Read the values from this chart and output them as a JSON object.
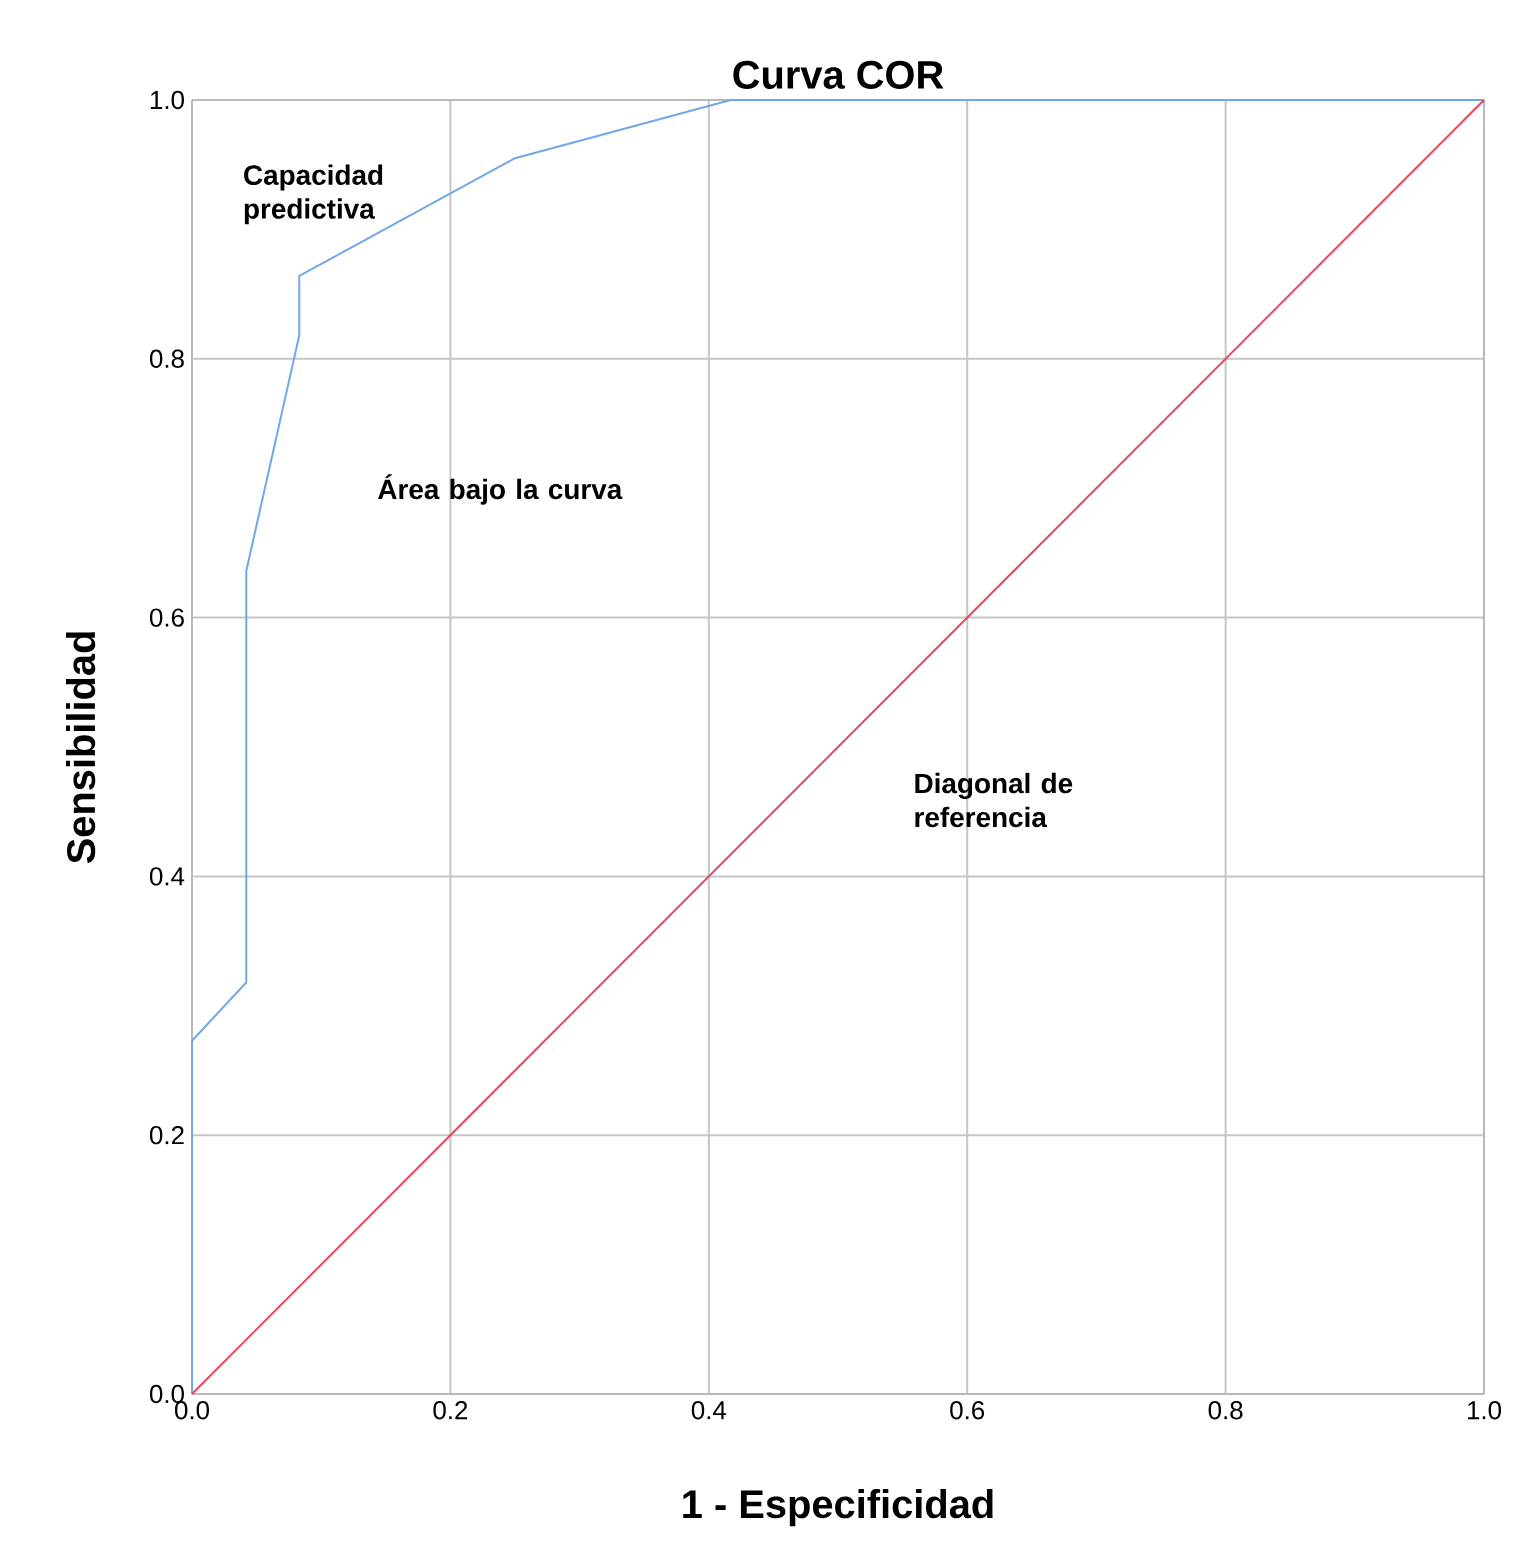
{
  "chart_data": {
    "type": "line",
    "title": "Curva COR",
    "xlabel": "1 - Especificidad",
    "ylabel": "Sensibilidad",
    "xlim": [
      0,
      1
    ],
    "ylim": [
      0,
      1
    ],
    "xticks": [
      {
        "value": 0,
        "label": "0.0"
      },
      {
        "value": 0.2,
        "label": "0.2"
      },
      {
        "value": 0.4,
        "label": "0.4"
      },
      {
        "value": 0.6,
        "label": "0.6"
      },
      {
        "value": 0.8,
        "label": "0.8"
      },
      {
        "value": 1,
        "label": "1.0"
      }
    ],
    "yticks": [
      {
        "value": 0,
        "label": "0.0"
      },
      {
        "value": 0.2,
        "label": "0.2"
      },
      {
        "value": 0.4,
        "label": "0.4"
      },
      {
        "value": 0.6,
        "label": "0.6"
      },
      {
        "value": 0.8,
        "label": "0.8"
      },
      {
        "value": 1,
        "label": "1.0"
      }
    ],
    "grid": true,
    "marker": "none",
    "line_style": "solid",
    "series": [
      {
        "color": "#6fa8e8",
        "x": [
          0,
          0,
          0.042,
          0.042,
          0.083,
          0.083,
          0.25,
          0.417,
          1
        ],
        "values": [
          0,
          0.273,
          0.318,
          0.636,
          0.818,
          0.864,
          0.955,
          1,
          1
        ]
      },
      {
        "color": "#e8475f",
        "x": [
          0,
          1
        ],
        "values": [
          0,
          1
        ]
      }
    ],
    "annotations": [
      "Capacidad predictiva",
      "Área bajo la curva",
      "Diagonal de referencia"
    ]
  }
}
